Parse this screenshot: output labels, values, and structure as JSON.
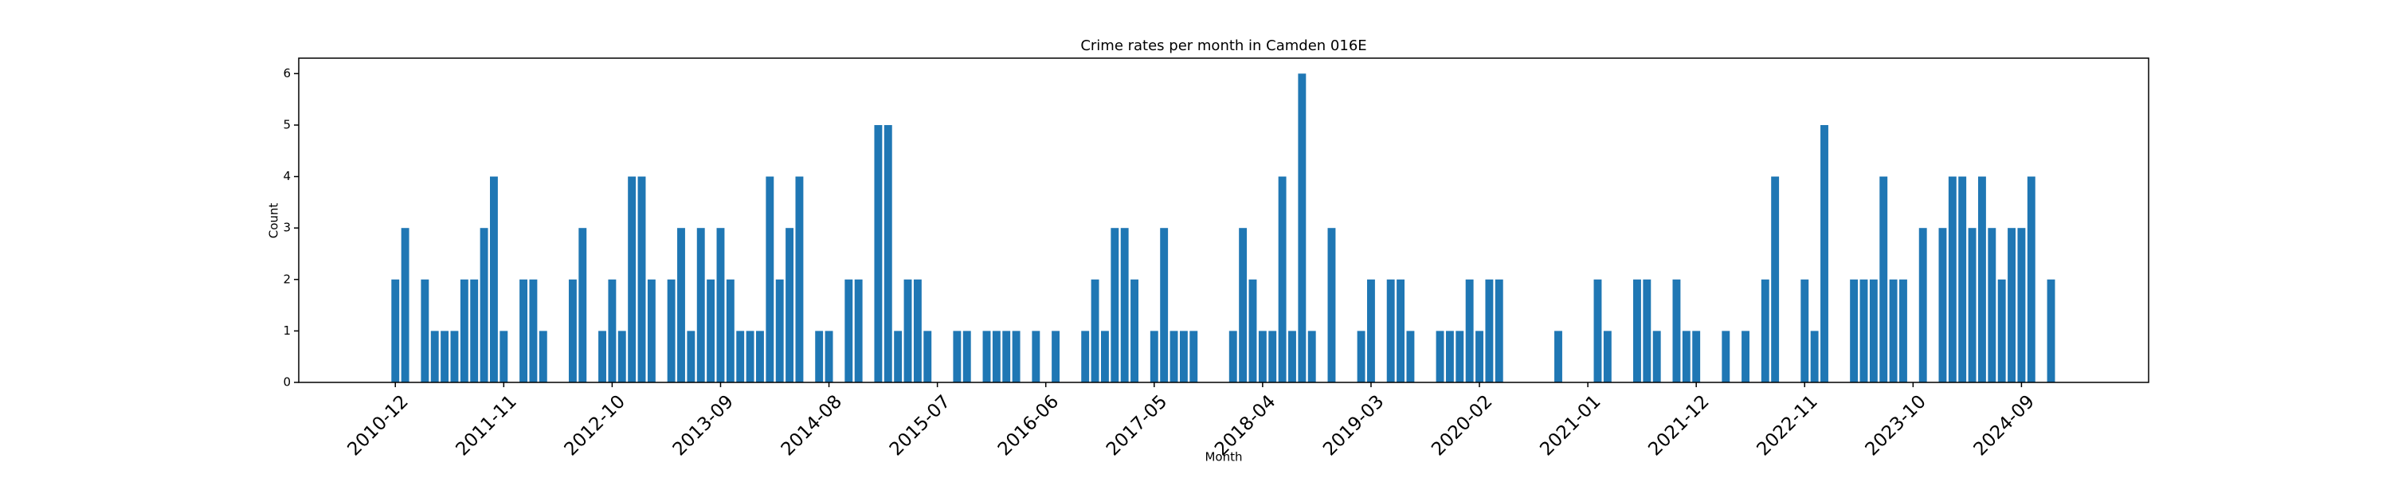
{
  "chart_data": {
    "type": "bar",
    "title": "Crime rates per month in Camden 016E",
    "x_label": "Month",
    "y_label": "Count",
    "color": "#1f77b4",
    "categories": [
      "2010-12",
      null,
      null,
      null,
      null,
      null,
      null,
      null,
      null,
      null,
      null,
      "2011-11",
      null,
      null,
      null,
      null,
      null,
      null,
      null,
      null,
      null,
      null,
      "2012-10",
      null,
      null,
      null,
      null,
      null,
      null,
      null,
      null,
      null,
      null,
      "2013-09",
      null,
      null,
      null,
      null,
      null,
      null,
      null,
      null,
      null,
      null,
      "2014-08",
      null,
      null,
      null,
      null,
      null,
      null,
      null,
      null,
      null,
      null,
      "2015-07",
      null,
      null,
      null,
      null,
      null,
      null,
      null,
      null,
      null,
      null,
      "2016-06",
      null,
      null,
      null,
      null,
      null,
      null,
      null,
      null,
      null,
      null,
      "2017-05",
      null,
      null,
      null,
      null,
      null,
      null,
      null,
      null,
      null,
      null,
      "2018-04",
      null,
      null,
      null,
      null,
      null,
      null,
      null,
      null,
      null,
      null,
      "2019-03",
      null,
      null,
      null,
      null,
      null,
      null,
      null,
      null,
      null,
      null,
      "2020-02",
      null,
      null,
      null,
      null,
      null,
      null,
      null,
      null,
      null,
      null,
      "2021-01",
      null,
      null,
      null,
      null,
      null,
      null,
      null,
      null,
      null,
      null,
      "2021-12",
      null,
      null,
      null,
      null,
      null,
      null,
      null,
      null,
      null,
      null,
      "2022-11",
      null,
      null,
      null,
      null,
      null,
      null,
      null,
      null,
      null,
      null,
      "2023-10",
      null,
      null,
      null,
      null,
      null,
      null,
      null,
      null,
      null,
      null,
      "2024-09",
      null,
      null,
      null
    ],
    "values": [
      2,
      3,
      0,
      2,
      1,
      1,
      1,
      2,
      2,
      3,
      4,
      1,
      0,
      2,
      2,
      1,
      0,
      0,
      2,
      3,
      0,
      1,
      2,
      1,
      4,
      4,
      2,
      0,
      2,
      3,
      1,
      3,
      2,
      3,
      2,
      1,
      1,
      1,
      4,
      2,
      3,
      4,
      0,
      1,
      1,
      0,
      2,
      2,
      0,
      5,
      5,
      1,
      2,
      2,
      1,
      0,
      0,
      1,
      1,
      0,
      1,
      1,
      1,
      1,
      0,
      1,
      0,
      1,
      0,
      0,
      1,
      2,
      1,
      3,
      3,
      2,
      0,
      1,
      3,
      1,
      1,
      1,
      0,
      0,
      0,
      1,
      3,
      2,
      1,
      1,
      4,
      1,
      6,
      1,
      0,
      3,
      0,
      0,
      1,
      2,
      0,
      2,
      2,
      1,
      0,
      0,
      1,
      1,
      1,
      2,
      1,
      2,
      2,
      0,
      0,
      0,
      0,
      0,
      1,
      0,
      0,
      0,
      2,
      1,
      0,
      0,
      2,
      2,
      1,
      0,
      2,
      1,
      1,
      0,
      0,
      1,
      0,
      1,
      0,
      2,
      4,
      0,
      0,
      2,
      1,
      5,
      0,
      0,
      2,
      2,
      2,
      4,
      2,
      2,
      0,
      3,
      0,
      3,
      4,
      4,
      3,
      4,
      3,
      2,
      3,
      3,
      4,
      0,
      2
    ],
    "ylim": [
      0,
      6.3
    ],
    "yticks": [
      0,
      1,
      2,
      3,
      4,
      5,
      6
    ]
  }
}
